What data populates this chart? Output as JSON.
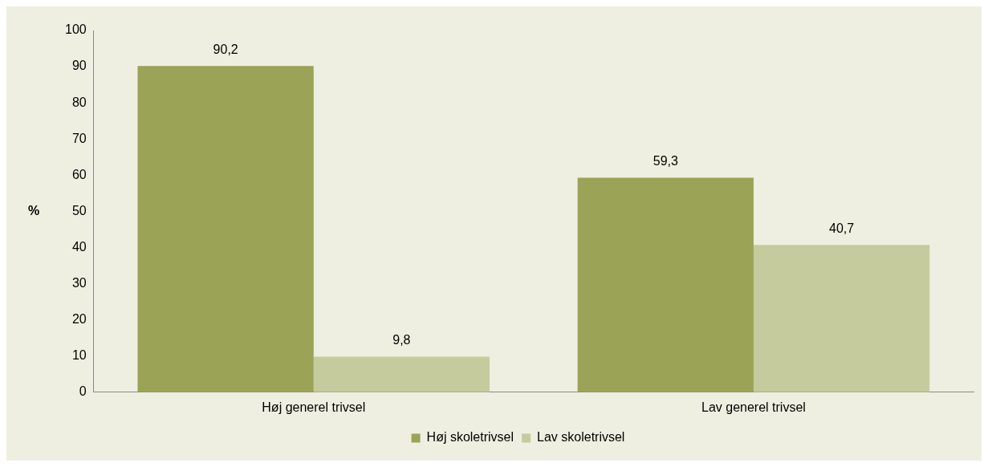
{
  "chart_data": {
    "type": "bar",
    "ylabel": "%",
    "categories": [
      "Høj generel trivsel",
      "Lav generel trivsel"
    ],
    "series": [
      {
        "name": "Høj skoletrivsel",
        "color": "#9aa356",
        "values": [
          90.2,
          59.3
        ],
        "value_labels": [
          "90,2",
          "59,3"
        ]
      },
      {
        "name": "Lav skoletrivsel",
        "color": "#c5cb9c",
        "values": [
          9.8,
          40.7
        ],
        "value_labels": [
          "9,8",
          "40,7"
        ]
      }
    ],
    "ylim": [
      0,
      100
    ],
    "yticks": [
      0,
      10,
      20,
      30,
      40,
      50,
      60,
      70,
      80,
      90,
      100
    ],
    "grid": false,
    "legend": "bottom"
  }
}
